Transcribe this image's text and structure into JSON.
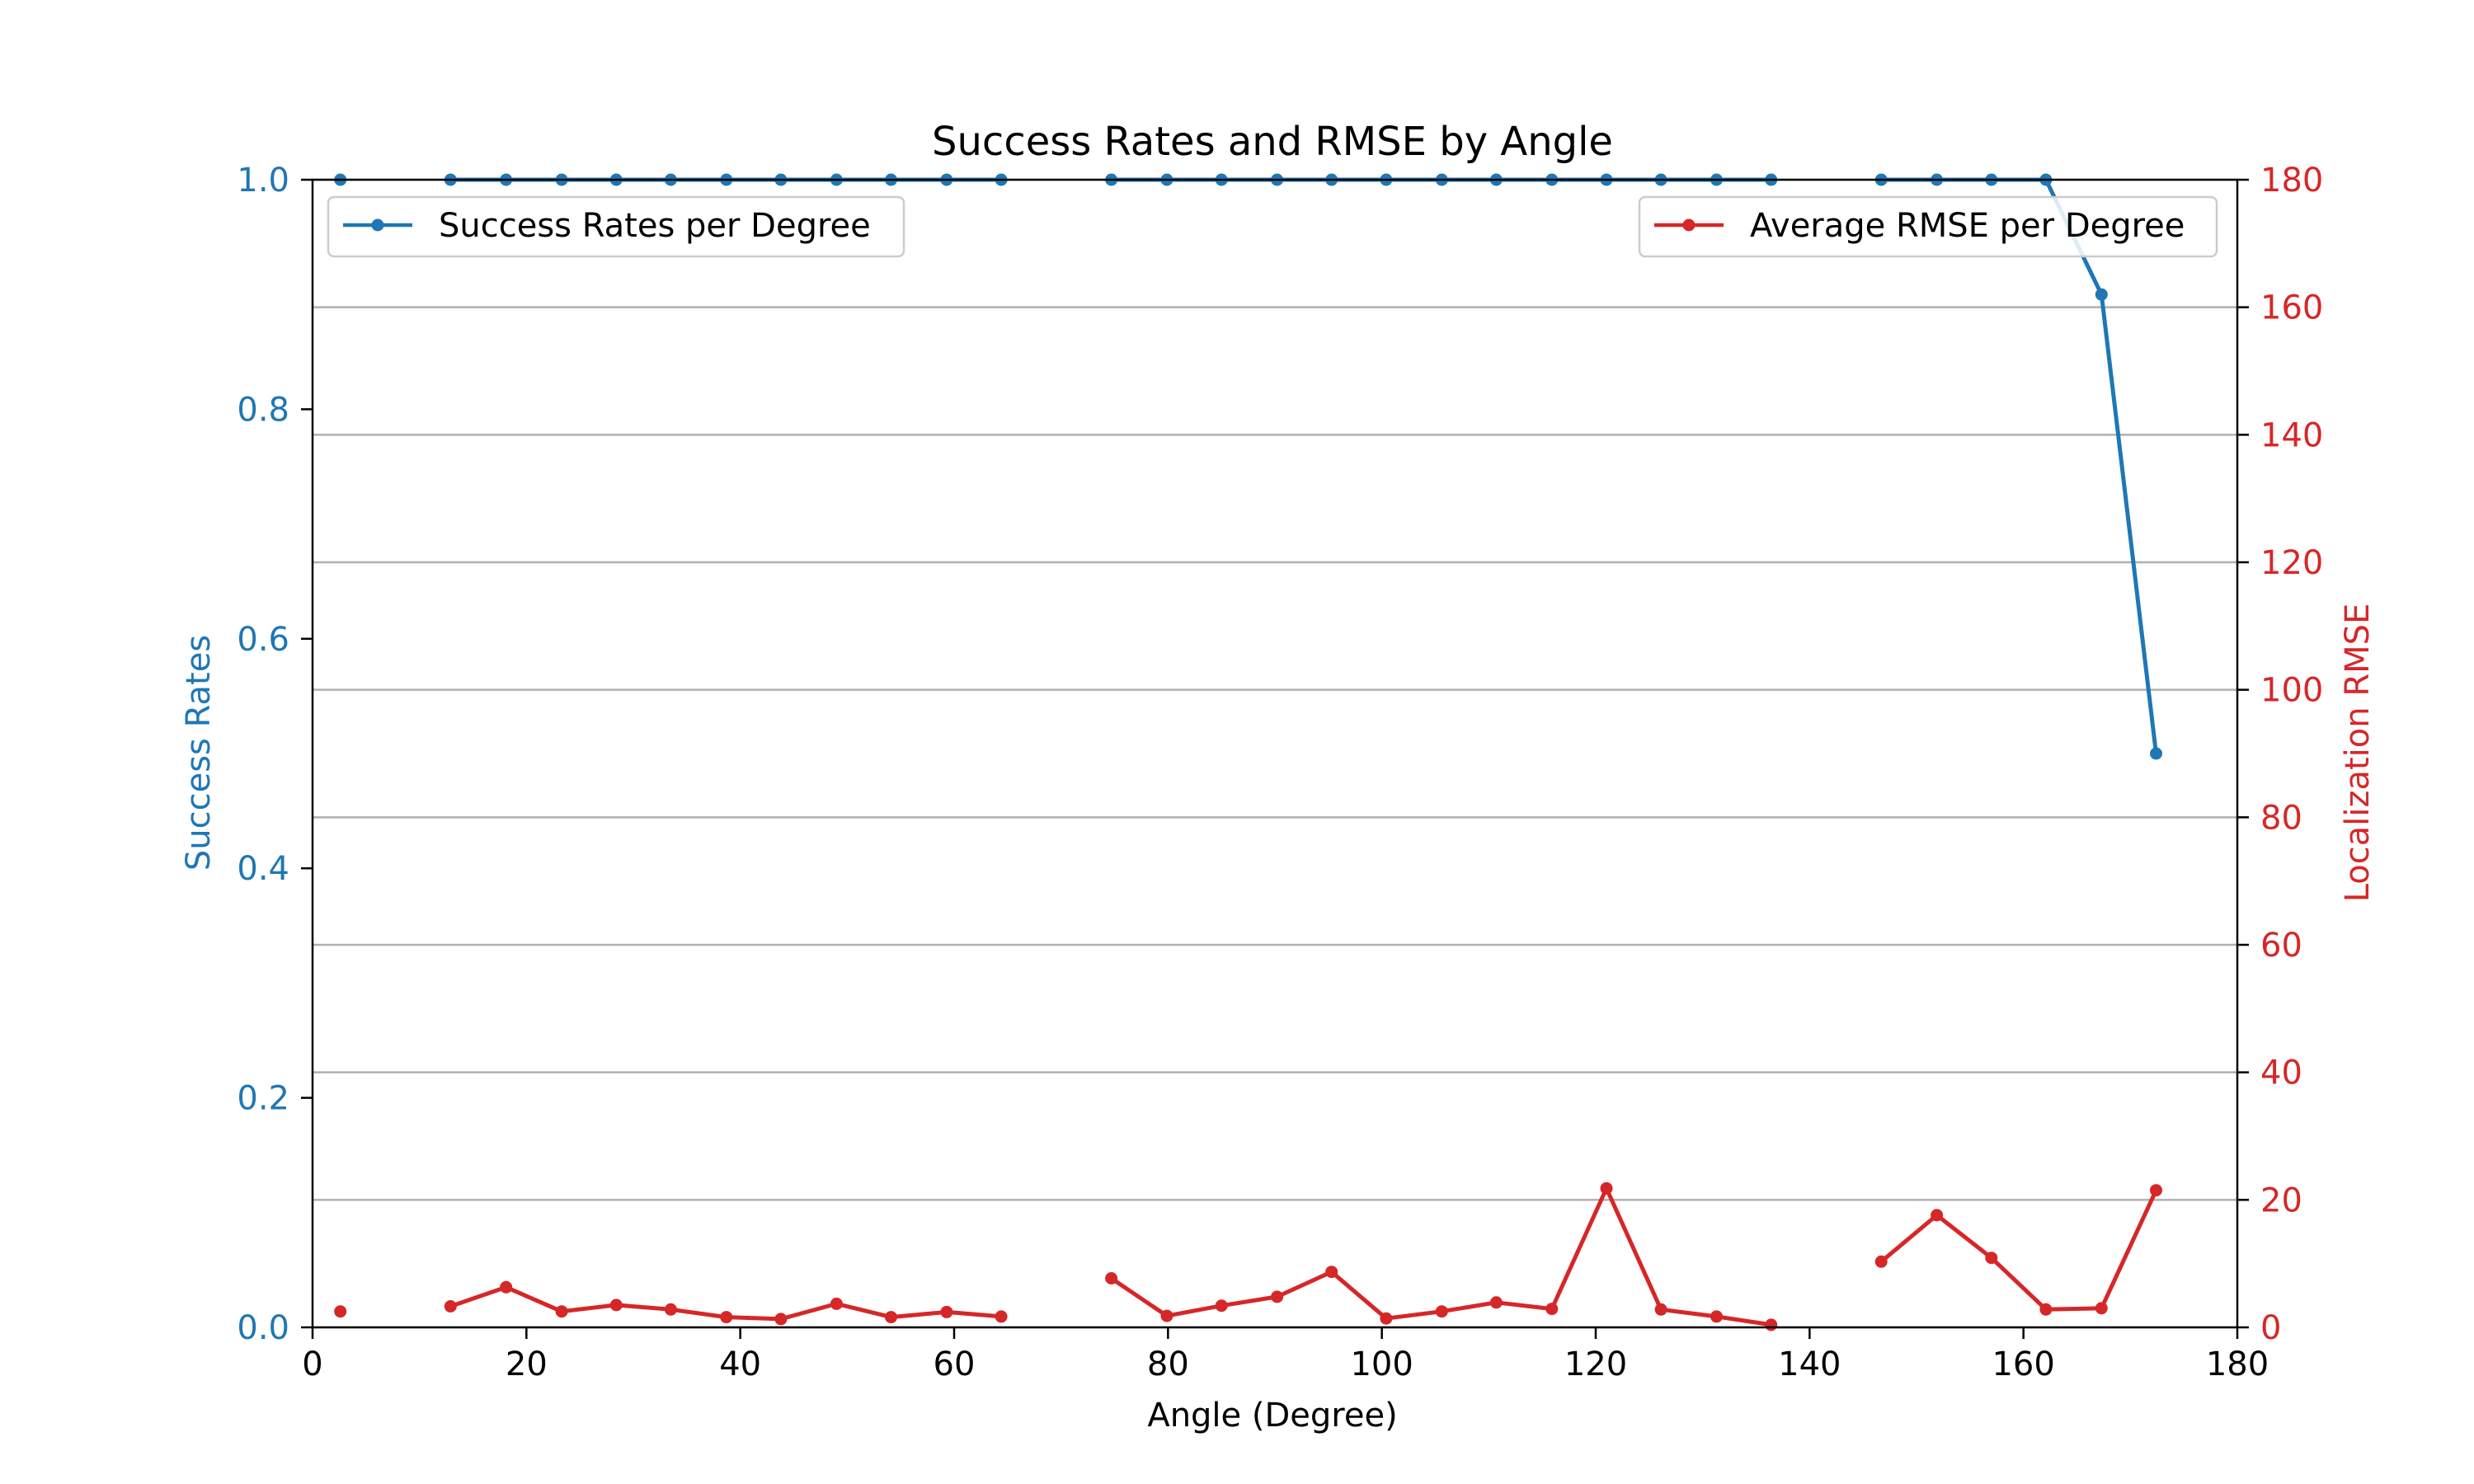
{
  "chart_data": {
    "type": "line",
    "title": "Success Rates and RMSE by Angle",
    "xlabel": "Angle (Degree)",
    "xlim": [
      0,
      180
    ],
    "x_ticks": [
      "0",
      "20",
      "40",
      "60",
      "80",
      "100",
      "120",
      "140",
      "160",
      "180"
    ],
    "grid": "horizontal lines (right axis)",
    "left_axis": {
      "label": "Success Rates",
      "ylim": [
        0,
        1.0
      ],
      "ticks": [
        "0.0",
        "0.2",
        "0.4",
        "0.6",
        "0.8",
        "1.0"
      ],
      "color": "#1f77b4"
    },
    "right_axis": {
      "label": "Localization RMSE",
      "ylim": [
        0,
        180
      ],
      "ticks": [
        "0",
        "20",
        "40",
        "60",
        "80",
        "100",
        "120",
        "140",
        "160",
        "180"
      ],
      "color": "#d62728"
    },
    "series": [
      {
        "name": "Success Rates per Degree",
        "axis": "left",
        "color": "#1f77b4",
        "legend_position": "upper-left",
        "segments": [
          {
            "x": [
              2.6
            ],
            "y": [
              1.0
            ]
          },
          {
            "x": [
              12.9,
              18.1,
              23.3,
              28.4,
              33.5,
              38.7,
              43.8,
              49.0,
              54.1,
              59.3,
              64.4
            ],
            "y": [
              1.0,
              1.0,
              1.0,
              1.0,
              1.0,
              1.0,
              1.0,
              1.0,
              1.0,
              1.0,
              1.0
            ]
          },
          {
            "x": [
              74.7,
              79.9,
              85.0,
              90.2,
              95.3,
              100.4,
              105.6,
              110.7,
              115.9,
              121.0,
              126.1,
              131.3,
              136.4
            ],
            "y": [
              1.0,
              1.0,
              1.0,
              1.0,
              1.0,
              1.0,
              1.0,
              1.0,
              1.0,
              1.0,
              1.0,
              1.0,
              1.0
            ]
          },
          {
            "x": [
              146.7,
              151.9,
              157.0,
              162.1,
              167.3,
              172.4
            ],
            "y": [
              1.0,
              1.0,
              1.0,
              1.0,
              0.9,
              0.5
            ]
          }
        ]
      },
      {
        "name": "Average RMSE per Degree",
        "axis": "right",
        "color": "#d62728",
        "legend_position": "upper-right",
        "segments": [
          {
            "x": [
              2.6
            ],
            "y": [
              2.5
            ]
          },
          {
            "x": [
              12.9,
              18.1,
              23.3,
              28.4,
              33.5,
              38.7,
              43.8,
              49.0,
              54.1,
              59.3,
              64.4
            ],
            "y": [
              3.3,
              6.3,
              2.5,
              3.5,
              2.8,
              1.6,
              1.3,
              3.7,
              1.6,
              2.4,
              1.7
            ]
          },
          {
            "x": [
              74.7,
              79.9,
              85.0,
              90.2,
              95.3,
              100.4,
              105.6,
              110.7,
              115.9,
              121.0,
              126.1,
              131.3,
              136.4
            ],
            "y": [
              7.7,
              1.8,
              3.4,
              4.8,
              8.7,
              1.4,
              2.5,
              3.9,
              2.9,
              21.8,
              2.8,
              1.7,
              0.4
            ]
          },
          {
            "x": [
              146.7,
              151.9,
              157.0,
              162.1,
              167.3,
              172.4
            ],
            "y": [
              10.3,
              17.6,
              10.9,
              2.8,
              3.0,
              21.5
            ]
          }
        ]
      }
    ]
  }
}
